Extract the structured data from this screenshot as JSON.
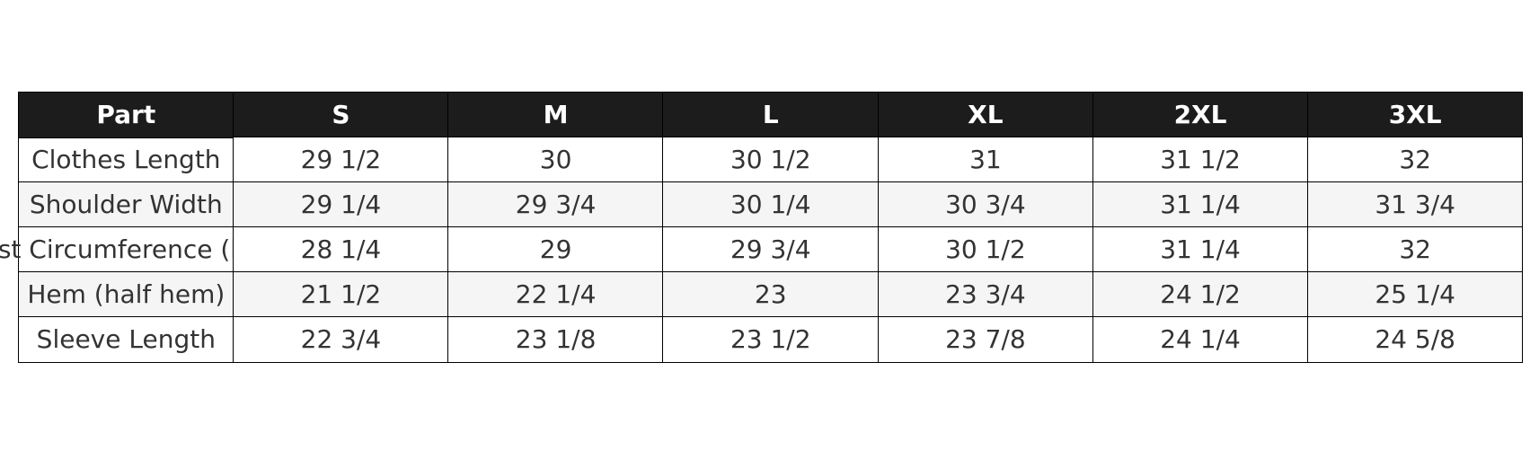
{
  "chart_data": {
    "type": "table",
    "columns": [
      "Part",
      "S",
      "M",
      "L",
      "XL",
      "2XL",
      "3XL"
    ],
    "rows": [
      {
        "label": "Clothes Length",
        "values": [
          "29 1/2",
          "30",
          "30 1/2",
          "31",
          "31 1/2",
          "32"
        ]
      },
      {
        "label": "Shoulder Width",
        "values": [
          "29 1/4",
          "29 3/4",
          "30 1/4",
          "30 3/4",
          "31 1/4",
          "31 3/4"
        ]
      },
      {
        "label": "Bust Circumference (half)",
        "values": [
          "28 1/4",
          "29",
          "29 3/4",
          "30 1/2",
          "31 1/4",
          "32"
        ]
      },
      {
        "label": "Hem (half hem)",
        "values": [
          "21 1/2",
          "22 1/4",
          "23",
          "23 3/4",
          "24 1/2",
          "25 1/4"
        ]
      },
      {
        "label": "Sleeve Length",
        "values": [
          "22 3/4",
          "23 1/8",
          "23 1/2",
          "23 7/8",
          "24 1/4",
          "24 5/8"
        ]
      }
    ],
    "header_color": "#1c1c1c",
    "stripe_color": "#f5f5f5"
  }
}
